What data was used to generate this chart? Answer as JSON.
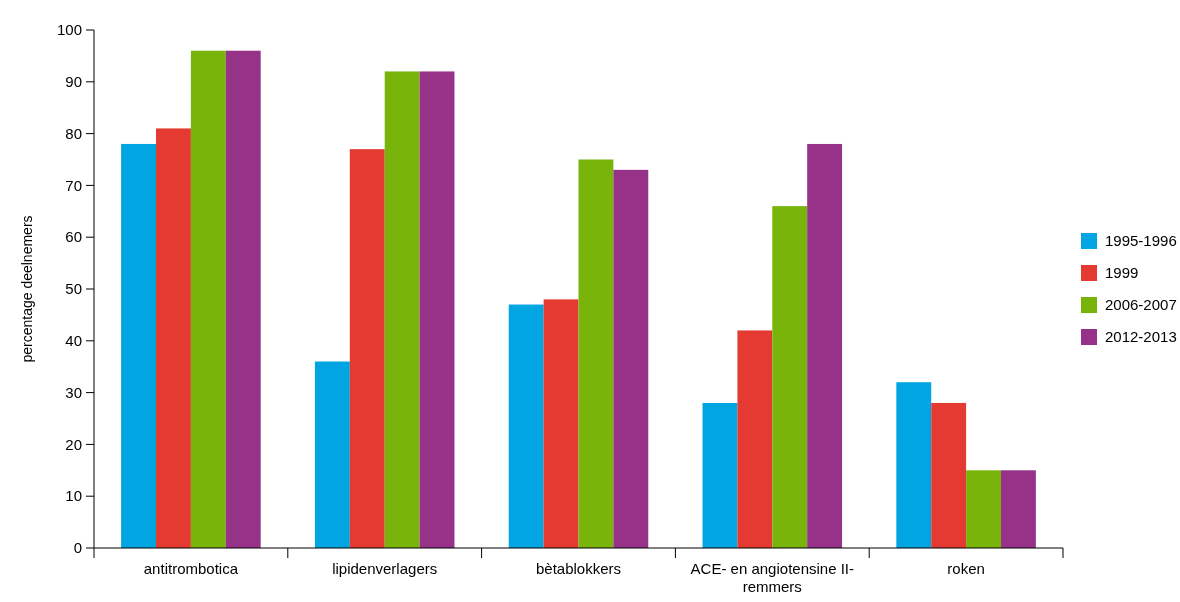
{
  "chart_data": {
    "type": "bar",
    "ylabel": "percentage deelnemers",
    "categories": [
      "antitrombotica",
      "lipidenverlagers",
      "bètablokkers",
      "ACE- en angiotensine II-remmers",
      "roken"
    ],
    "series": [
      {
        "name": "1995-1996",
        "color": "#00a5e1",
        "values": [
          78,
          36,
          47,
          28,
          32
        ]
      },
      {
        "name": "1999",
        "color": "#e53a31",
        "values": [
          81,
          77,
          48,
          42,
          28
        ]
      },
      {
        "name": "2006-2007",
        "color": "#78b40a",
        "values": [
          96,
          92,
          75,
          66,
          15
        ]
      },
      {
        "name": "2012-2013",
        "color": "#963288",
        "values": [
          96,
          92,
          73,
          78,
          15
        ]
      }
    ],
    "ylim": [
      0,
      100
    ],
    "yticks": [
      0,
      10,
      20,
      30,
      40,
      50,
      60,
      70,
      80,
      90,
      100
    ],
    "grid": false,
    "legend": "right"
  }
}
